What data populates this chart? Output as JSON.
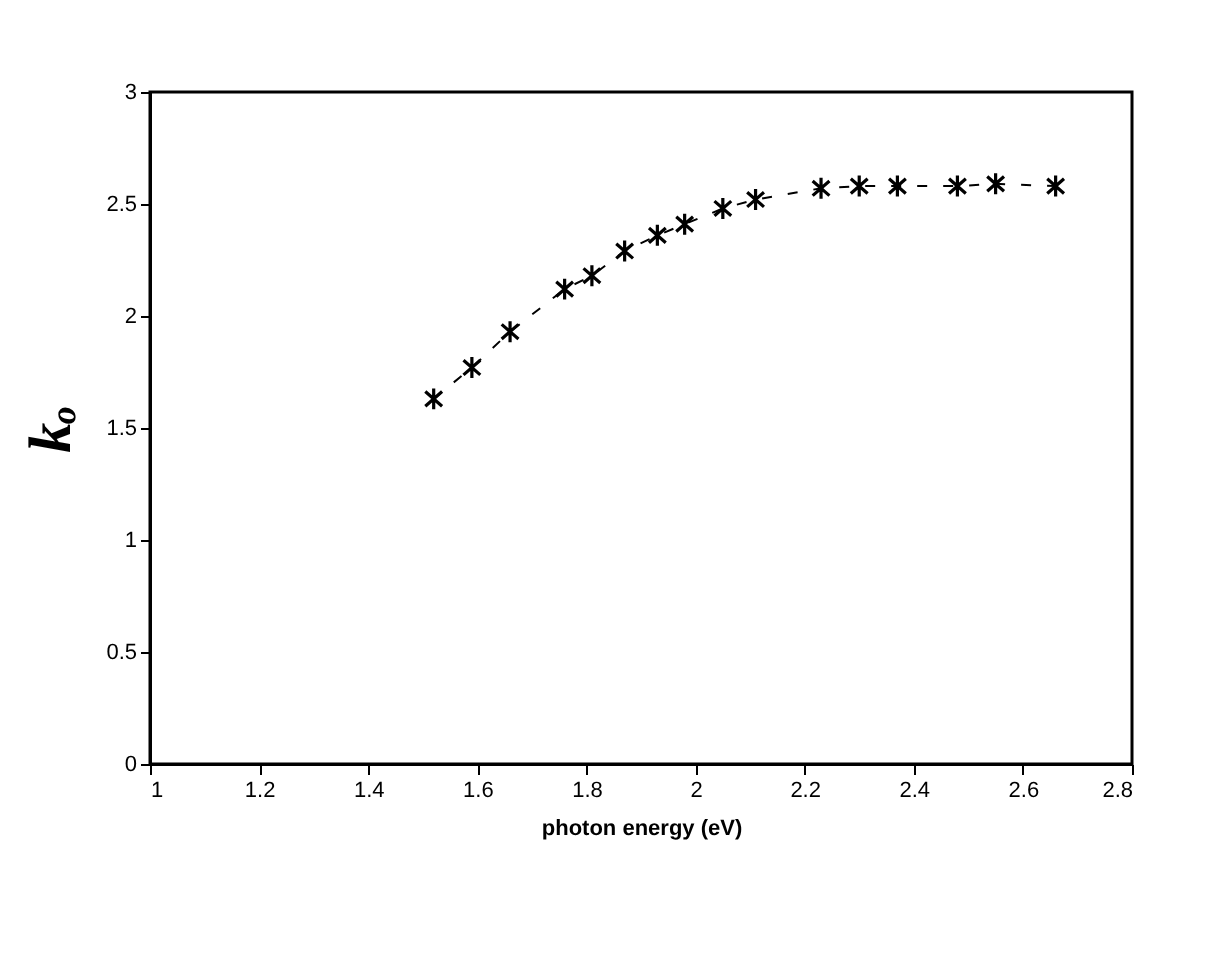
{
  "chart_data": {
    "type": "line",
    "xlabel": "photon energy (eV)",
    "ylabel": "kₒ",
    "x": [
      1.52,
      1.59,
      1.66,
      1.76,
      1.81,
      1.87,
      1.93,
      1.98,
      2.05,
      2.11,
      2.23,
      2.3,
      2.37,
      2.48,
      2.55,
      2.66
    ],
    "series": [
      {
        "color": "#000000",
        "values": [
          1.63,
          1.77,
          1.93,
          2.12,
          2.18,
          2.29,
          2.36,
          2.41,
          2.48,
          2.52,
          2.57,
          2.58,
          2.58,
          2.58,
          2.59,
          2.58
        ]
      }
    ],
    "xlim": [
      1,
      2.8
    ],
    "xticks": [
      1,
      1.2,
      1.4,
      1.6,
      1.8,
      2,
      2.2,
      2.4,
      2.6,
      2.8
    ],
    "ylim": [
      0,
      3
    ],
    "yticks": [
      0,
      0.5,
      1,
      1.5,
      2,
      2.5,
      3
    ],
    "grid": false,
    "marker": "cross",
    "line_style": "dashed"
  }
}
